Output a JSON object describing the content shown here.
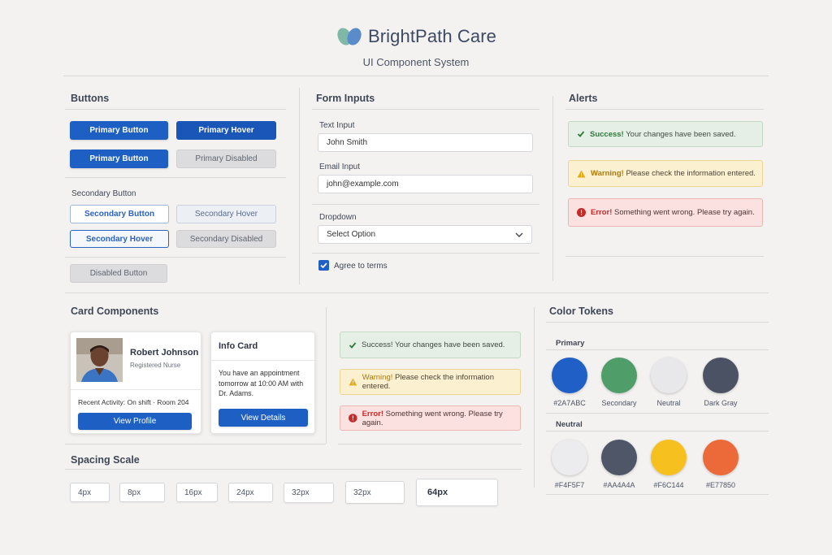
{
  "header": {
    "brand": "BrightPath Care",
    "subtitle": "UI Component System"
  },
  "buttons": {
    "title": "Buttons",
    "primary": "Primary Button",
    "primary_hover": "Primary Hover",
    "primary_2": "Primary Button",
    "primary_disabled": "Primary Disabled",
    "secondary_heading": "Secondary Button",
    "secondary": "Secondary Button",
    "secondary_hover": "Secondary Hover",
    "secondary_hover_focus": "Secondary Hover",
    "secondary_disabled": "Secondary Disabled",
    "disabled": "Disabled Button"
  },
  "form": {
    "title": "Form Inputs",
    "text_label": "Text Input",
    "text_value": "John Smith",
    "email_label": "Email Input",
    "email_value": "john@example.com",
    "dropdown_label": "Dropdown",
    "dropdown_value": "Select Option",
    "checkbox_label": "Agree to terms",
    "checkbox_checked": true
  },
  "alerts": {
    "title": "Alerts",
    "success_strong": "Success!",
    "success_text": "Your changes have been saved.",
    "warning_strong": "Warning!",
    "warning_text": "Please check the information entered.",
    "error_strong": "Error!",
    "error_text": "Something went wrong. Please try again."
  },
  "cards": {
    "title": "Card Components",
    "profile": {
      "name": "Robert Johnson",
      "role": "Registered Nurse",
      "activity": "Recent Activity: On shift · Room 204",
      "button": "View Profile"
    },
    "info": {
      "title": "Info Card",
      "body": "You have an appointment tomorrow at 10:00 AM with Dr. Adams.",
      "button": "View Details"
    }
  },
  "spacing": {
    "title": "Spacing Scale",
    "items": [
      "4px",
      "8px",
      "16px",
      "24px",
      "32px",
      "32px",
      "64px"
    ]
  },
  "colors": {
    "title": "Color Tokens",
    "primary_heading": "Primary",
    "neutral_heading": "Neutral",
    "primary": [
      {
        "label": "#2A7ABC",
        "color": "#1f5fc6"
      },
      {
        "label": "Secondary",
        "color": "#4f9e6a"
      },
      {
        "label": "Neutral",
        "color": "#e8e8ea"
      },
      {
        "label": "Dark Gray",
        "color": "#4a5263"
      }
    ],
    "neutral": [
      {
        "label": "#F4F5F7",
        "color": "#ececee"
      },
      {
        "label": "#AA4A4A",
        "color": "#4e5667"
      },
      {
        "label": "#F6C144",
        "color": "#f6c11e"
      },
      {
        "label": "#E77850",
        "color": "#ec6a3a"
      }
    ]
  }
}
